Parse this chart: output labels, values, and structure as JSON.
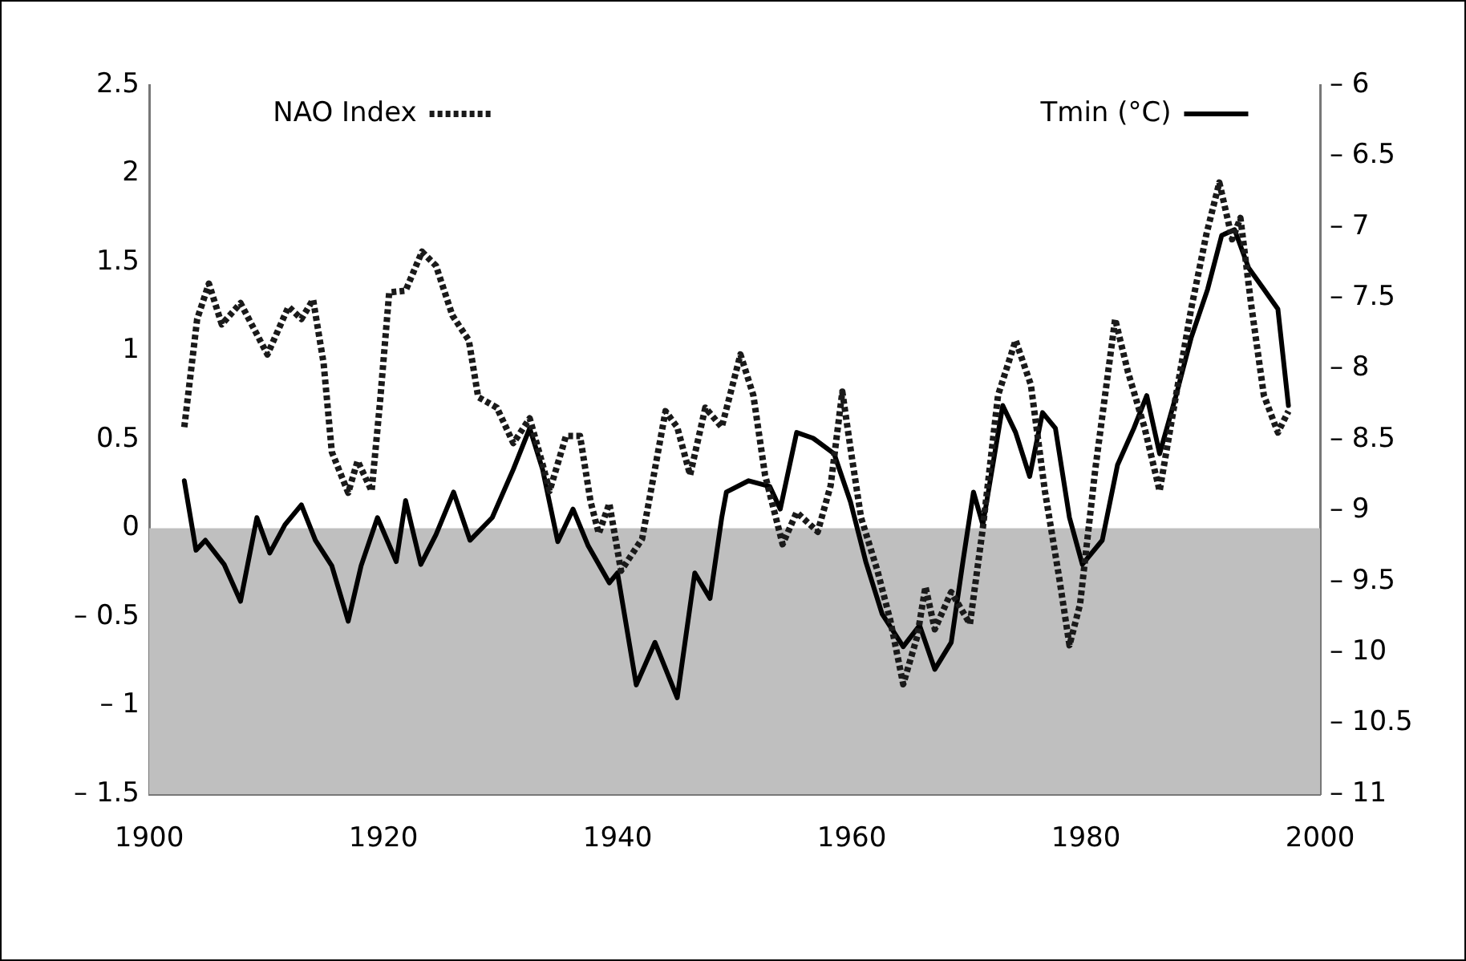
{
  "chart_data": {
    "type": "line",
    "xlim": [
      1900,
      2000
    ],
    "xticks": [
      1900,
      1920,
      1940,
      1960,
      1980,
      2000
    ],
    "ylim": [
      -1.5,
      2.5
    ],
    "yticks": [
      {
        "value": -1.5,
        "label": "– 1.5"
      },
      {
        "value": -1,
        "label": "– 1"
      },
      {
        "value": -0.5,
        "label": "– 0.5"
      },
      0,
      0.5,
      1,
      1.5,
      2,
      2.5
    ],
    "y2lim": [
      -11,
      -6
    ],
    "y2ticks": [
      {
        "value": -11,
        "label": "– 11"
      },
      {
        "value": -10.5,
        "label": "– 10.5"
      },
      {
        "value": -10,
        "label": "– 10"
      },
      {
        "value": -9.5,
        "label": "– 9.5"
      },
      {
        "value": -9,
        "label": "– 9"
      },
      {
        "value": -8.5,
        "label": "– 8.5"
      },
      {
        "value": -8,
        "label": "– 8"
      },
      {
        "value": -7.5,
        "label": "– 7.5"
      },
      {
        "value": -7,
        "label": "– 7"
      },
      {
        "value": -6.5,
        "label": "– 6.5"
      },
      {
        "value": -6,
        "label": "– 6"
      }
    ],
    "grid": false,
    "legend": "top",
    "marker": "none",
    "bands": [
      {
        "axis": "y",
        "from": -1.5,
        "to": 0,
        "color": "#bfbfbf"
      }
    ],
    "series": [
      {
        "name": "NAO Index",
        "color": "#1a1a1a",
        "line_style": "dotted",
        "x": [
          1903.0,
          1904.1,
          1905.1,
          1906.2,
          1907.8,
          1910.1,
          1911.9,
          1913.0,
          1914.0,
          1914.9,
          1915.6,
          1917.0,
          1917.8,
          1919.0,
          1919.7,
          1920.5,
          1921.9,
          1923.3,
          1924.5,
          1925.9,
          1927.3,
          1928.1,
          1929.7,
          1931.1,
          1932.5,
          1933.6,
          1934.2,
          1935.6,
          1936.8,
          1937.7,
          1938.4,
          1939.3,
          1940.3,
          1942.1,
          1944.1,
          1945.1,
          1946.2,
          1947.5,
          1948.9,
          1950.5,
          1951.6,
          1952.6,
          1954.1,
          1955.3,
          1957.1,
          1958.2,
          1959.2,
          1959.9,
          1960.8,
          1962.2,
          1963.3,
          1964.4,
          1965.6,
          1966.3,
          1967.1,
          1968.5,
          1970.1,
          1971.2,
          1972.5,
          1974.0,
          1975.3,
          1976.5,
          1977.7,
          1978.6,
          1979.5,
          1980.8,
          1982.5,
          1983.6,
          1985.0,
          1986.3,
          1987.7,
          1989.0,
          1990.3,
          1991.4,
          1992.5,
          1993.2,
          1994.1,
          1995.2,
          1996.4,
          1997.3
        ],
        "values": [
          0.57,
          1.18,
          1.38,
          1.15,
          1.27,
          0.98,
          1.25,
          1.18,
          1.29,
          0.93,
          0.43,
          0.2,
          0.38,
          0.21,
          0.7,
          1.33,
          1.34,
          1.56,
          1.48,
          1.2,
          1.06,
          0.74,
          0.68,
          0.48,
          0.62,
          0.36,
          0.21,
          0.52,
          0.52,
          0.15,
          -0.03,
          0.14,
          -0.24,
          -0.06,
          0.66,
          0.57,
          0.3,
          0.68,
          0.57,
          0.98,
          0.75,
          0.3,
          -0.09,
          0.09,
          -0.02,
          0.24,
          0.77,
          0.45,
          0.06,
          -0.24,
          -0.52,
          -0.88,
          -0.61,
          -0.33,
          -0.57,
          -0.36,
          -0.54,
          0.0,
          0.75,
          1.06,
          0.81,
          0.21,
          -0.27,
          -0.66,
          -0.43,
          0.33,
          1.18,
          0.88,
          0.57,
          0.21,
          0.75,
          1.24,
          1.66,
          1.95,
          1.63,
          1.75,
          1.27,
          0.75,
          0.54,
          0.66
        ]
      },
      {
        "name": "Tmin (°C)",
        "color": "#000000",
        "line_style": "solid",
        "axis": "y2",
        "x": [
          1903.0,
          1904.0,
          1904.8,
          1906.4,
          1907.8,
          1909.2,
          1910.3,
          1911.6,
          1913.0,
          1914.2,
          1915.6,
          1917.0,
          1918.1,
          1919.5,
          1921.1,
          1921.9,
          1923.2,
          1924.5,
          1926.0,
          1927.4,
          1929.3,
          1931.1,
          1932.5,
          1933.6,
          1934.9,
          1936.2,
          1937.5,
          1939.3,
          1940.0,
          1941.6,
          1943.2,
          1945.1,
          1946.6,
          1947.9,
          1948.9,
          1949.3,
          1951.2,
          1953.0,
          1953.9,
          1955.3,
          1956.7,
          1958.5,
          1959.9,
          1961.2,
          1962.6,
          1964.4,
          1965.8,
          1967.1,
          1968.5,
          1969.5,
          1970.4,
          1971.2,
          1972.9,
          1974.0,
          1975.2,
          1976.3,
          1977.4,
          1978.6,
          1979.7,
          1981.4,
          1982.7,
          1984.1,
          1985.2,
          1986.3,
          1987.7,
          1989.0,
          1990.4,
          1991.6,
          1992.7,
          1993.9,
          1995.2,
          1996.4,
          1997.3
        ],
        "values": [
          -8.79,
          -9.28,
          -9.21,
          -9.38,
          -9.64,
          -9.05,
          -9.3,
          -9.1,
          -8.96,
          -9.21,
          -9.39,
          -9.78,
          -9.39,
          -9.05,
          -9.36,
          -8.93,
          -9.38,
          -9.17,
          -8.87,
          -9.21,
          -9.05,
          -8.71,
          -8.42,
          -8.71,
          -9.22,
          -8.99,
          -9.25,
          -9.51,
          -9.44,
          -10.23,
          -9.93,
          -10.32,
          -9.44,
          -9.62,
          -9.05,
          -8.87,
          -8.79,
          -8.83,
          -8.99,
          -8.45,
          -8.49,
          -8.6,
          -8.94,
          -9.36,
          -9.73,
          -9.96,
          -9.81,
          -10.12,
          -9.93,
          -9.36,
          -8.87,
          -9.1,
          -8.26,
          -8.45,
          -8.76,
          -8.31,
          -8.42,
          -9.05,
          -9.38,
          -9.21,
          -8.68,
          -8.42,
          -8.19,
          -8.6,
          -8.19,
          -7.78,
          -7.44,
          -7.06,
          -7.02,
          -7.29,
          -7.44,
          -7.58,
          -8.26
        ]
      }
    ]
  }
}
